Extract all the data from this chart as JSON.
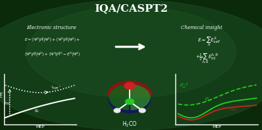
{
  "title": "IQA/CASPT2",
  "bg_dark": "#0a2a0a",
  "bg_mid": "#1a5020",
  "bg_light": "#2a6030",
  "white": "#ffffff",
  "left_header": "Electronic structure",
  "right_header": "Chemical insight",
  "arrow_color": "#e0e0e0",
  "mol_red": "#8b1515",
  "mol_darkred": "#6b0f0f",
  "mol_blue": "#151560",
  "mol_darkblue": "#0f0f50",
  "mol_green_l": "#1a5c1a",
  "mol_green_r": "#2a7a2a",
  "atom_red": "#cc2222",
  "atom_green": "#22cc22",
  "atom_white": "#e8e8e8",
  "curve_green": "#22cc22",
  "curve_red": "#cc2222",
  "plot_bg": "#0a2a0a"
}
